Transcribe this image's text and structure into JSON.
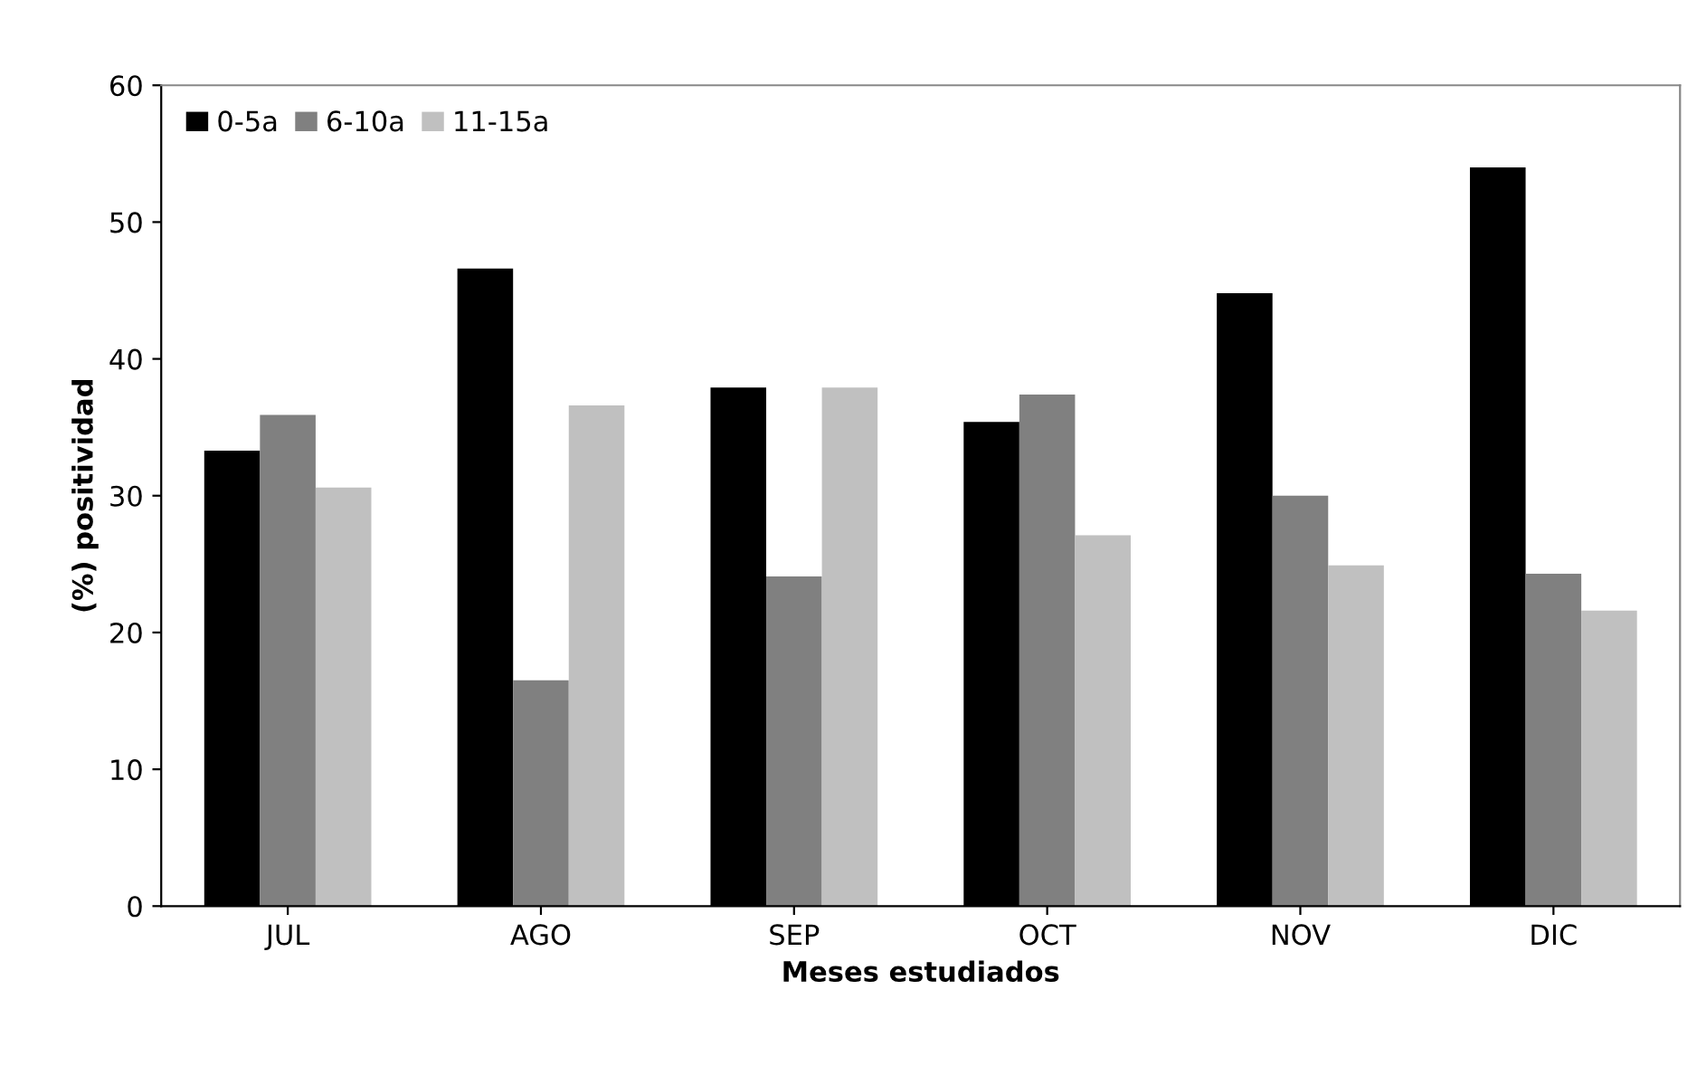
{
  "chart_data": {
    "type": "bar",
    "xlabel": "Meses estudiados",
    "ylabel": "(%) positividad",
    "categories": [
      "JUL",
      "AGO",
      "SEP",
      "OCT",
      "NOV",
      "DIC"
    ],
    "series": [
      {
        "name": "0-5a",
        "color": "#000000",
        "values": [
          33.3,
          46.6,
          37.9,
          35.4,
          44.8,
          54.0
        ]
      },
      {
        "name": "6-10a",
        "color": "#808080",
        "values": [
          35.9,
          16.5,
          24.1,
          37.4,
          30.0,
          24.3
        ]
      },
      {
        "name": "11-15a",
        "color": "#c0c0c0",
        "values": [
          30.6,
          36.6,
          37.9,
          27.1,
          24.9,
          21.6
        ]
      }
    ],
    "ylim": [
      0,
      60
    ],
    "yticks": [
      0,
      10,
      20,
      30,
      40,
      50,
      60
    ],
    "grid": false,
    "legend": "top left"
  }
}
